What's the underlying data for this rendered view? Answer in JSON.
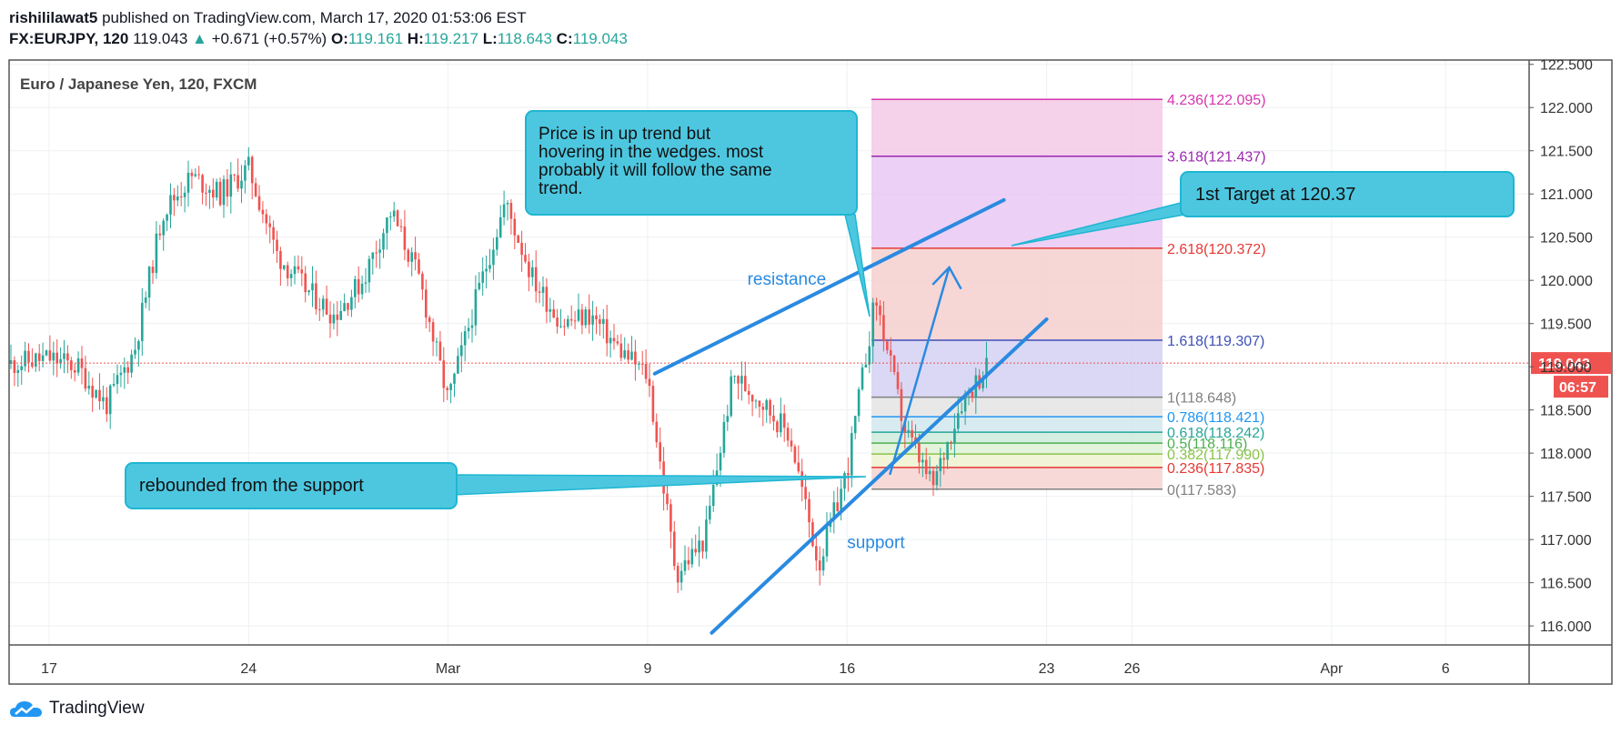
{
  "header": {
    "author": "rishililawat5",
    "published": "published on TradingView.com, March 17, 2020 01:53:06 EST",
    "symbol": "FX:EURJPY, 120",
    "last": "119.043",
    "up_arrow": "▲",
    "change": "+0.671 (+0.57%)",
    "o_label": "O:",
    "o_val": "119.161",
    "h_label": "H:",
    "h_val": "119.217",
    "l_label": "L:",
    "l_val": "118.643",
    "c_label": "C:",
    "c_val": "119.043"
  },
  "footer": {
    "logo_text": "TradingView",
    "icon": "tradingview-cloud-icon"
  },
  "chart_data": {
    "type": "candlestick",
    "title": "Euro / Japanese Yen, 120, FXCM",
    "ylim": [
      115.78,
      122.55
    ],
    "y_ticks": [
      "122.500",
      "122.000",
      "121.500",
      "121.000",
      "120.500",
      "120.000",
      "119.500",
      "119.000",
      "118.500",
      "118.000",
      "117.500",
      "117.000",
      "116.500",
      "116.000"
    ],
    "y_tick_values": [
      122.5,
      122.0,
      121.5,
      121.0,
      120.5,
      120.0,
      119.5,
      119.0,
      118.5,
      118.0,
      117.5,
      117.0,
      116.5,
      116.0
    ],
    "x_ticks": [
      "17",
      "24",
      "Mar",
      "9",
      "16",
      "23",
      "26",
      "Apr",
      "6"
    ],
    "x_tick_dates": [
      "2020-02-17",
      "2020-02-24",
      "2020-03-02",
      "2020-03-09",
      "2020-03-16",
      "2020-03-23",
      "2020-03-26",
      "2020-04-02",
      "2020-04-06"
    ],
    "price_path": [
      [
        "2020-02-14",
        118.95
      ],
      [
        "2020-02-17",
        119.1
      ],
      [
        "2020-02-18",
        119.0
      ],
      [
        "2020-02-19",
        118.55
      ],
      [
        "2020-02-20",
        119.2
      ],
      [
        "2020-02-21",
        120.8
      ],
      [
        "2020-02-22",
        121.2
      ],
      [
        "2020-02-23",
        121.0
      ],
      [
        "2020-02-24",
        121.3
      ],
      [
        "2020-02-25",
        120.3
      ],
      [
        "2020-02-26",
        119.9
      ],
      [
        "2020-02-27",
        119.6
      ],
      [
        "2020-02-28",
        120.0
      ],
      [
        "2020-02-29",
        120.8
      ],
      [
        "2020-03-01",
        120.0
      ],
      [
        "2020-03-02",
        118.6
      ],
      [
        "2020-03-03",
        119.8
      ],
      [
        "2020-03-04",
        120.9
      ],
      [
        "2020-03-05",
        120.0
      ],
      [
        "2020-03-06",
        119.5
      ],
      [
        "2020-03-07",
        119.6
      ],
      [
        "2020-03-08",
        119.2
      ],
      [
        "2020-03-09",
        118.9
      ],
      [
        "2020-03-10",
        116.6
      ],
      [
        "2020-03-11",
        117.0
      ],
      [
        "2020-03-12",
        118.9
      ],
      [
        "2020-03-13",
        118.6
      ],
      [
        "2020-03-14",
        118.2
      ],
      [
        "2020-03-15",
        116.7
      ],
      [
        "2020-03-16",
        117.8
      ],
      [
        "2020-03-17",
        119.8
      ],
      [
        "2020-03-18",
        118.3
      ],
      [
        "2020-03-19",
        117.6
      ],
      [
        "2020-03-20",
        118.6
      ],
      [
        "2020-03-21",
        119.04
      ]
    ],
    "last_price": "119.043",
    "last_price_value": 119.043,
    "countdown": "06:57",
    "fib_levels": [
      {
        "label": "4.236(122.095)",
        "value": 122.095,
        "color": "#d535ad",
        "fill": "#f3c9e6"
      },
      {
        "label": "3.618(121.437)",
        "value": 121.437,
        "color": "#9c27b0",
        "fill": "#e9c8f3"
      },
      {
        "label": "2.618(120.372)",
        "value": 120.372,
        "color": "#e53935",
        "fill": "#f6cfcf"
      },
      {
        "label": "1.618(119.307)",
        "value": 119.307,
        "color": "#3f51b5",
        "fill": "#d3d1f3"
      },
      {
        "label": "1(118.648)",
        "value": 118.648,
        "color": "#808080",
        "fill": "#e4e4e4"
      },
      {
        "label": "0.786(118.421)",
        "value": 118.421,
        "color": "#2196f3",
        "fill": "#d1e7ee"
      },
      {
        "label": "0.618(118.242)",
        "value": 118.242,
        "color": "#26a69a",
        "fill": "#cdebdc"
      },
      {
        "label": "0.5(118.116)",
        "value": 118.116,
        "color": "#4caf50",
        "fill": "#def1d6"
      },
      {
        "label": "0.382(117.990)",
        "value": 117.99,
        "color": "#8bc34a",
        "fill": "#eef2cf"
      },
      {
        "label": "0.236(117.835)",
        "value": 117.835,
        "color": "#e53935",
        "fill": "#f6d4d1"
      },
      {
        "label": "0(117.583)",
        "value": 117.583,
        "color": "#808080",
        "fill": "#f6d4d1"
      }
    ],
    "annotations": {
      "callout_trend": [
        "Price is in up trend but",
        "hovering in the wedges. most",
        "probably it will follow the same",
        "trend."
      ],
      "callout_target": "1st Target at 120.37",
      "callout_support": "rebounded from the support",
      "resistance": "resistance",
      "support": "support"
    },
    "colors": {
      "bull": "#26a69a",
      "bear": "#ef5350",
      "trendline": "#2a8ae0",
      "callout_fill": "#4dc7e0",
      "callout_stroke": "#1fb6d2"
    }
  }
}
